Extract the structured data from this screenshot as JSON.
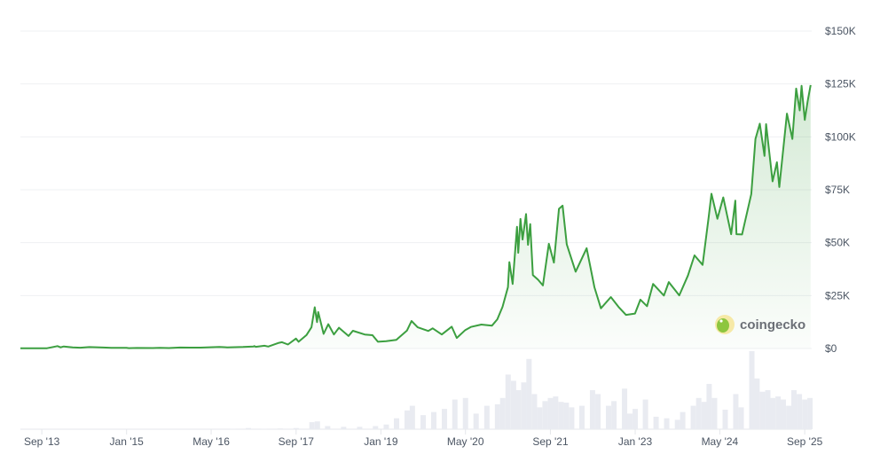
{
  "chart_data": {
    "type": "line",
    "title": "",
    "xlabel": "",
    "ylabel": "",
    "watermark": "coingecko",
    "colors": {
      "line": "#3c9f40",
      "fill": "#3c9f40",
      "volume": "#e9ebf1",
      "grid": "#eff0f3"
    },
    "grid": true,
    "xlim": [
      "2013-05-01",
      "2025-10-11"
    ],
    "ylim": [
      0,
      150000
    ],
    "y_ticks": [
      "$0",
      "$25K",
      "$50K",
      "$75K",
      "$100K",
      "$125K",
      "$150K"
    ],
    "y_tick_values": [
      0,
      25000,
      50000,
      75000,
      100000,
      125000,
      150000
    ],
    "x_ticks": [
      "Sep '13",
      "Jan '15",
      "May '16",
      "Sep '17",
      "Jan '19",
      "May '20",
      "Sep '21",
      "Jan '23",
      "May '24",
      "Sep '25"
    ],
    "x_tick_dates": [
      "2013-09-01",
      "2015-01-01",
      "2016-05-01",
      "2017-09-01",
      "2019-01-01",
      "2020-05-01",
      "2021-09-01",
      "2023-01-01",
      "2024-05-01",
      "2025-09-01"
    ],
    "series": [
      {
        "kind": "price",
        "points": [
          [
            "2013-05-01",
            120
          ],
          [
            "2013-07-01",
            90
          ],
          [
            "2013-10-01",
            130
          ],
          [
            "2013-11-30",
            1150
          ],
          [
            "2013-12-18",
            550
          ],
          [
            "2014-01-05",
            950
          ],
          [
            "2014-02-25",
            550
          ],
          [
            "2014-04-10",
            360
          ],
          [
            "2014-06-01",
            650
          ],
          [
            "2014-08-20",
            480
          ],
          [
            "2014-10-05",
            320
          ],
          [
            "2014-12-31",
            320
          ],
          [
            "2015-01-14",
            170
          ],
          [
            "2015-03-01",
            260
          ],
          [
            "2015-06-01",
            230
          ],
          [
            "2015-07-10",
            280
          ],
          [
            "2015-09-01",
            230
          ],
          [
            "2015-11-04",
            450
          ],
          [
            "2015-12-31",
            430
          ],
          [
            "2016-03-01",
            430
          ],
          [
            "2016-06-17",
            750
          ],
          [
            "2016-08-02",
            550
          ],
          [
            "2016-10-31",
            700
          ],
          [
            "2016-12-31",
            960
          ],
          [
            "2017-01-04",
            1130
          ],
          [
            "2017-01-12",
            780
          ],
          [
            "2017-03-03",
            1280
          ],
          [
            "2017-03-25",
            930
          ],
          [
            "2017-05-25",
            2700
          ],
          [
            "2017-06-12",
            2980
          ],
          [
            "2017-07-16",
            1900
          ],
          [
            "2017-08-31",
            4700
          ],
          [
            "2017-09-15",
            3200
          ],
          [
            "2017-10-31",
            6400
          ],
          [
            "2017-11-28",
            10000
          ],
          [
            "2017-12-17",
            19500
          ],
          [
            "2017-12-30",
            12500
          ],
          [
            "2018-01-06",
            17200
          ],
          [
            "2018-02-06",
            6900
          ],
          [
            "2018-03-05",
            11500
          ],
          [
            "2018-04-06",
            6600
          ],
          [
            "2018-05-05",
            9800
          ],
          [
            "2018-06-29",
            5900
          ],
          [
            "2018-07-24",
            8400
          ],
          [
            "2018-09-30",
            6600
          ],
          [
            "2018-11-14",
            6300
          ],
          [
            "2018-12-15",
            3200
          ],
          [
            "2019-01-31",
            3450
          ],
          [
            "2019-03-31",
            4100
          ],
          [
            "2019-05-31",
            8500
          ],
          [
            "2019-06-26",
            13000
          ],
          [
            "2019-07-31",
            10000
          ],
          [
            "2019-09-30",
            8300
          ],
          [
            "2019-10-26",
            9500
          ],
          [
            "2019-12-17",
            6600
          ],
          [
            "2020-02-12",
            10300
          ],
          [
            "2020-03-12",
            5000
          ],
          [
            "2020-04-30",
            8700
          ],
          [
            "2020-06-01",
            10200
          ],
          [
            "2020-07-31",
            11300
          ],
          [
            "2020-09-30",
            10800
          ],
          [
            "2020-10-31",
            13800
          ],
          [
            "2020-11-30",
            19700
          ],
          [
            "2020-12-31",
            29000
          ],
          [
            "2021-01-08",
            40800
          ],
          [
            "2021-01-27",
            30500
          ],
          [
            "2021-02-21",
            57500
          ],
          [
            "2021-02-28",
            45200
          ],
          [
            "2021-03-13",
            61200
          ],
          [
            "2021-03-25",
            51500
          ],
          [
            "2021-04-14",
            63500
          ],
          [
            "2021-04-25",
            49000
          ],
          [
            "2021-05-08",
            58800
          ],
          [
            "2021-05-23",
            34700
          ],
          [
            "2021-06-22",
            32500
          ],
          [
            "2021-07-20",
            29800
          ],
          [
            "2021-08-23",
            49500
          ],
          [
            "2021-09-21",
            40600
          ],
          [
            "2021-10-20",
            66000
          ],
          [
            "2021-11-10",
            67500
          ],
          [
            "2021-12-04",
            49200
          ],
          [
            "2022-01-24",
            36300
          ],
          [
            "2022-03-28",
            47400
          ],
          [
            "2022-05-12",
            28900
          ],
          [
            "2022-06-18",
            19000
          ],
          [
            "2022-08-14",
            24300
          ],
          [
            "2022-09-30",
            19400
          ],
          [
            "2022-11-09",
            15900
          ],
          [
            "2022-12-31",
            16500
          ],
          [
            "2023-01-31",
            23100
          ],
          [
            "2023-03-10",
            20000
          ],
          [
            "2023-04-14",
            30500
          ],
          [
            "2023-06-15",
            25000
          ],
          [
            "2023-07-13",
            31400
          ],
          [
            "2023-09-11",
            25100
          ],
          [
            "2023-10-31",
            34500
          ],
          [
            "2023-12-08",
            44000
          ],
          [
            "2024-01-23",
            39500
          ],
          [
            "2024-02-28",
            62500
          ],
          [
            "2024-03-14",
            73100
          ],
          [
            "2024-04-17",
            61300
          ],
          [
            "2024-05-21",
            71400
          ],
          [
            "2024-07-05",
            54000
          ],
          [
            "2024-07-29",
            69900
          ],
          [
            "2024-08-05",
            54000
          ],
          [
            "2024-09-06",
            53900
          ],
          [
            "2024-10-29",
            73000
          ],
          [
            "2024-11-22",
            99000
          ],
          [
            "2024-12-17",
            106200
          ],
          [
            "2025-01-13",
            91000
          ],
          [
            "2025-01-22",
            106000
          ],
          [
            "2025-02-28",
            79000
          ],
          [
            "2025-03-25",
            88000
          ],
          [
            "2025-04-08",
            76300
          ],
          [
            "2025-05-22",
            111000
          ],
          [
            "2025-06-22",
            99000
          ],
          [
            "2025-07-14",
            122800
          ],
          [
            "2025-08-03",
            112500
          ],
          [
            "2025-08-14",
            124100
          ],
          [
            "2025-09-01",
            108000
          ],
          [
            "2025-09-18",
            117000
          ],
          [
            "2025-10-05",
            124500
          ]
        ]
      },
      {
        "kind": "volume",
        "ylim": [
          0,
          100
        ],
        "points": [
          [
            "2016-09-01",
            0.5
          ],
          [
            "2016-12-01",
            1.5
          ],
          [
            "2017-03-01",
            0.5
          ],
          [
            "2017-06-01",
            1
          ],
          [
            "2017-09-01",
            1.5
          ],
          [
            "2017-12-01",
            9
          ],
          [
            "2018-01-01",
            10
          ],
          [
            "2018-03-01",
            4
          ],
          [
            "2018-06-01",
            3
          ],
          [
            "2018-09-01",
            3
          ],
          [
            "2018-12-01",
            4
          ],
          [
            "2019-02-01",
            6
          ],
          [
            "2019-04-01",
            14
          ],
          [
            "2019-06-01",
            24
          ],
          [
            "2019-07-01",
            30
          ],
          [
            "2019-09-01",
            18
          ],
          [
            "2019-11-01",
            22
          ],
          [
            "2020-01-01",
            26
          ],
          [
            "2020-03-01",
            38
          ],
          [
            "2020-05-01",
            40
          ],
          [
            "2020-07-01",
            20
          ],
          [
            "2020-09-01",
            30
          ],
          [
            "2020-11-01",
            32
          ],
          [
            "2020-12-01",
            40
          ],
          [
            "2021-01-01",
            70
          ],
          [
            "2021-02-01",
            62
          ],
          [
            "2021-03-01",
            50
          ],
          [
            "2021-04-01",
            60
          ],
          [
            "2021-05-01",
            90
          ],
          [
            "2021-06-01",
            45
          ],
          [
            "2021-07-01",
            28
          ],
          [
            "2021-08-01",
            36
          ],
          [
            "2021-09-01",
            40
          ],
          [
            "2021-10-01",
            42
          ],
          [
            "2021-11-01",
            35
          ],
          [
            "2021-12-01",
            34
          ],
          [
            "2022-01-01",
            28
          ],
          [
            "2022-03-01",
            30
          ],
          [
            "2022-05-01",
            50
          ],
          [
            "2022-06-01",
            45
          ],
          [
            "2022-08-01",
            30
          ],
          [
            "2022-09-01",
            36
          ],
          [
            "2022-11-01",
            52
          ],
          [
            "2022-12-01",
            20
          ],
          [
            "2023-01-01",
            26
          ],
          [
            "2023-03-01",
            38
          ],
          [
            "2023-05-01",
            16
          ],
          [
            "2023-07-01",
            14
          ],
          [
            "2023-09-01",
            12
          ],
          [
            "2023-10-01",
            22
          ],
          [
            "2023-12-01",
            30
          ],
          [
            "2024-01-01",
            40
          ],
          [
            "2024-02-01",
            35
          ],
          [
            "2024-03-01",
            58
          ],
          [
            "2024-04-01",
            40
          ],
          [
            "2024-06-01",
            25
          ],
          [
            "2024-08-01",
            45
          ],
          [
            "2024-09-01",
            28
          ],
          [
            "2024-11-01",
            100
          ],
          [
            "2024-12-01",
            65
          ],
          [
            "2025-01-01",
            48
          ],
          [
            "2025-02-01",
            50
          ],
          [
            "2025-03-01",
            40
          ],
          [
            "2025-04-01",
            42
          ],
          [
            "2025-05-01",
            38
          ],
          [
            "2025-06-01",
            30
          ],
          [
            "2025-07-01",
            50
          ],
          [
            "2025-08-01",
            45
          ],
          [
            "2025-09-01",
            38
          ],
          [
            "2025-10-01",
            40
          ]
        ]
      }
    ]
  }
}
